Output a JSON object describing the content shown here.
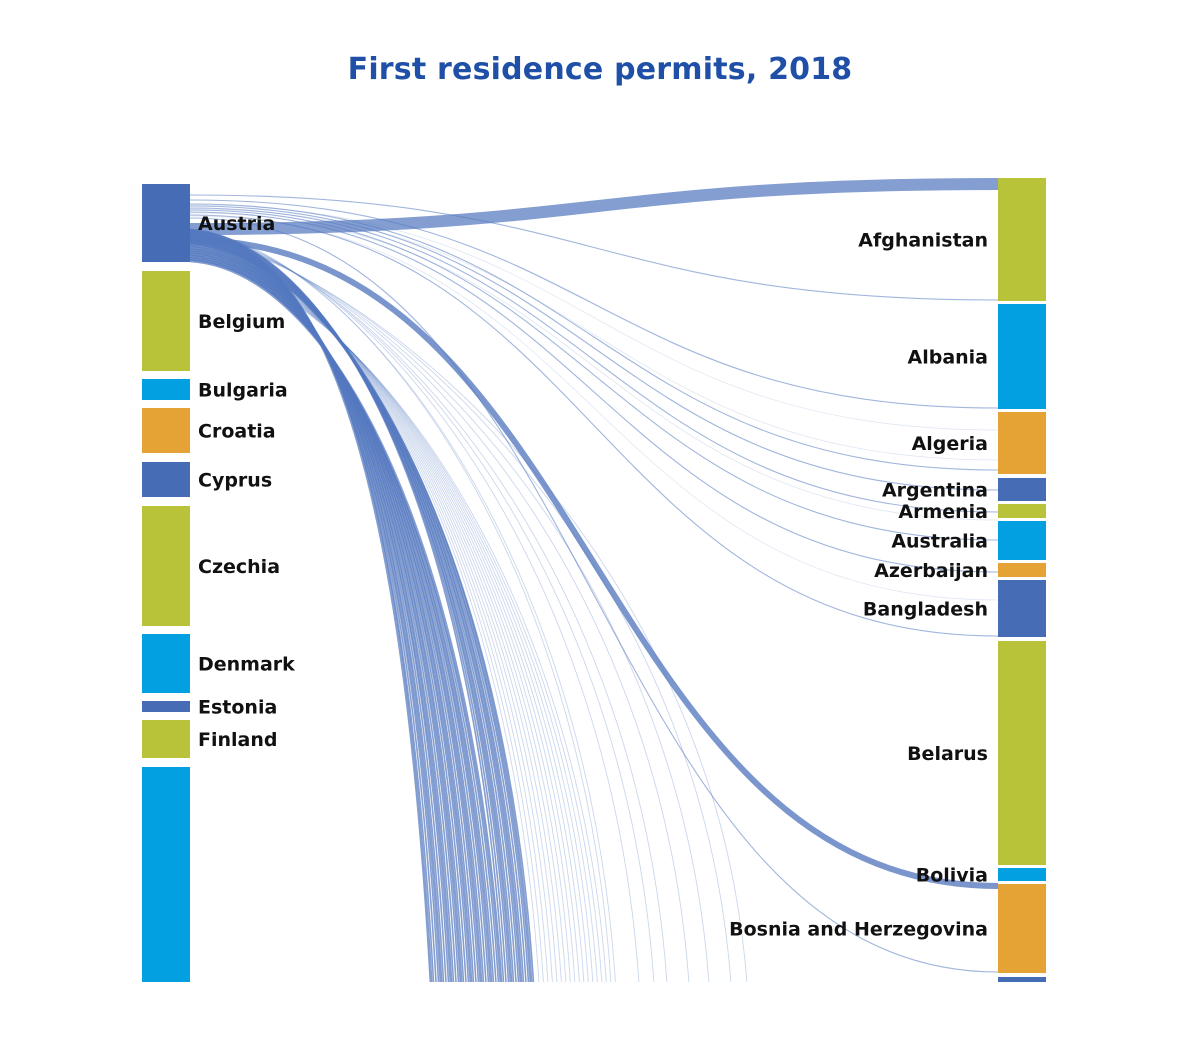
{
  "title": "First residence permits, 2018",
  "colors": {
    "blue": "#466cb5",
    "green": "#b8c33a",
    "cyan": "#02a0e0",
    "orange": "#e6a335",
    "flow": "#5479bf",
    "title": "#1f4fa6"
  },
  "left_nodes": [
    {
      "label": "Austria",
      "color": "blue"
    },
    {
      "label": "Belgium",
      "color": "green"
    },
    {
      "label": "Bulgaria",
      "color": "cyan"
    },
    {
      "label": "Croatia",
      "color": "orange"
    },
    {
      "label": "Cyprus",
      "color": "blue"
    },
    {
      "label": "Czechia",
      "color": "green"
    },
    {
      "label": "Denmark",
      "color": "cyan"
    },
    {
      "label": "Estonia",
      "color": "blue"
    },
    {
      "label": "Finland",
      "color": "green"
    },
    {
      "label": "",
      "color": "cyan"
    }
  ],
  "right_nodes": [
    {
      "label": "Afghanistan",
      "color": "green"
    },
    {
      "label": "Albania",
      "color": "cyan"
    },
    {
      "label": "Algeria",
      "color": "orange"
    },
    {
      "label": "Argentina",
      "color": "blue"
    },
    {
      "label": "Armenia",
      "color": "green"
    },
    {
      "label": "Australia",
      "color": "cyan"
    },
    {
      "label": "Azerbaijan",
      "color": "orange"
    },
    {
      "label": "Bangladesh",
      "color": "blue"
    },
    {
      "label": "Belarus",
      "color": "green"
    },
    {
      "label": "Bolivia",
      "color": "cyan"
    },
    {
      "label": "Bosnia and Herzegovina",
      "color": "orange"
    },
    {
      "label": "",
      "color": "blue"
    }
  ]
}
